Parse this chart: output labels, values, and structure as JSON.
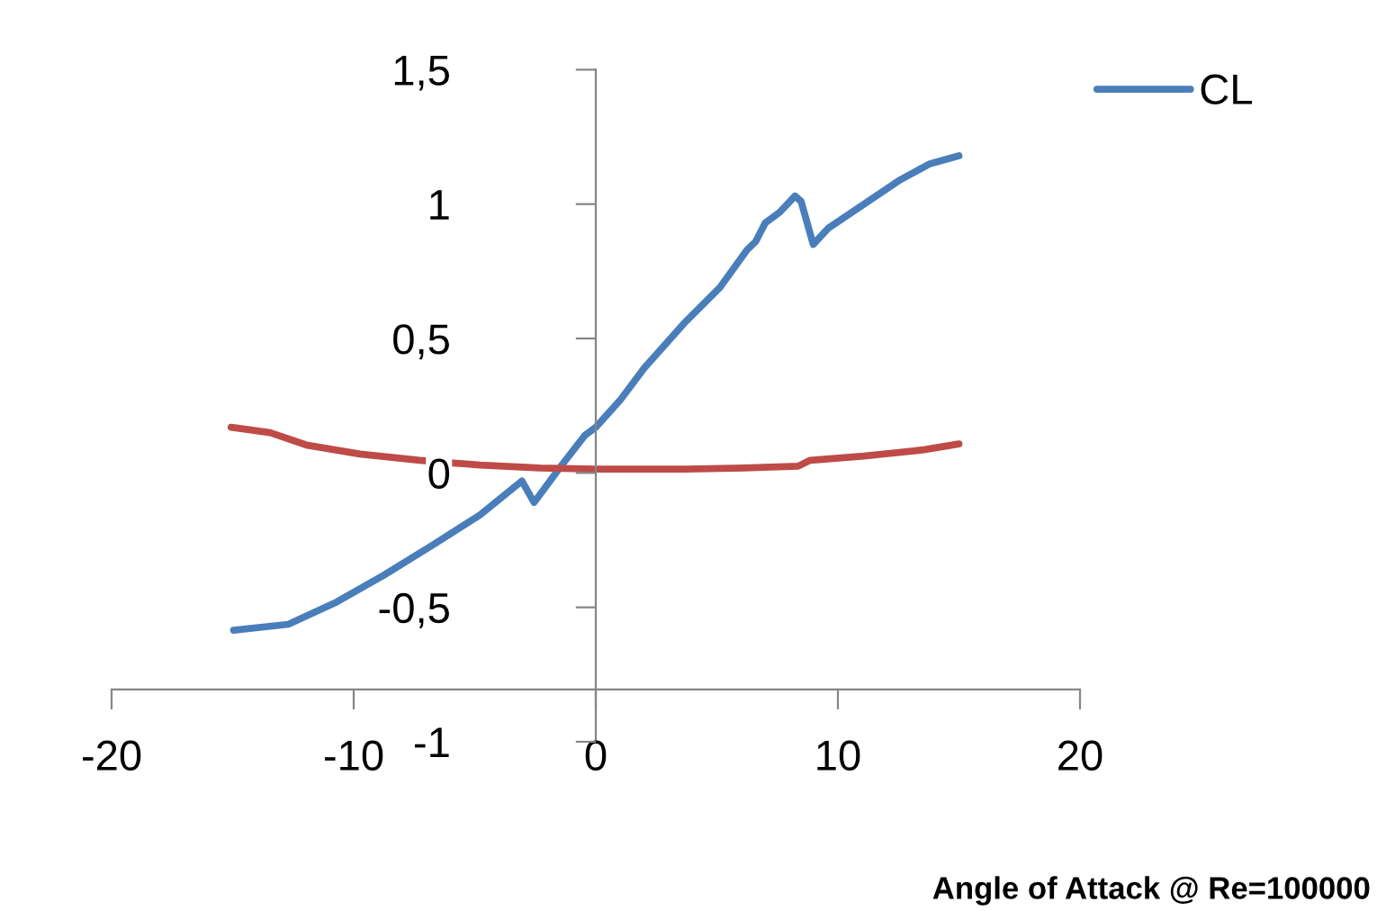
{
  "chart_data": {
    "type": "line",
    "xlabel": "Angle of Attack @ Re=100000",
    "series": [
      {
        "name": "CL",
        "color": "#4a7ebb",
        "x": [
          -14.96,
          -12.7,
          -10.7,
          -8.75,
          -6.77,
          -4.78,
          -3.05,
          -2.55,
          -1.44,
          -0.45,
          0,
          1,
          2,
          3.64,
          5.13,
          6.25,
          6.6,
          7.0,
          7.6,
          8.23,
          8.48,
          8.98,
          9.6,
          11.08,
          12.57,
          13.8,
          15.0
        ],
        "values": [
          -0.585,
          -0.563,
          -0.48,
          -0.38,
          -0.27,
          -0.156,
          -0.03,
          -0.11,
          0.025,
          0.14,
          0.17,
          0.27,
          0.39,
          0.556,
          0.69,
          0.83,
          0.86,
          0.93,
          0.97,
          1.03,
          1.01,
          0.85,
          0.91,
          1.0,
          1.09,
          1.15,
          1.18
        ]
      },
      {
        "color": "#be4b48",
        "x": [
          -15.06,
          -13.45,
          -11.96,
          -9.74,
          -7.26,
          -4.78,
          -2.3,
          0,
          3.64,
          6.1,
          8.36,
          8.85,
          11.08,
          13.55,
          15.0
        ],
        "values": [
          0.17,
          0.15,
          0.104,
          0.07,
          0.047,
          0.029,
          0.018,
          0.014,
          0.014,
          0.018,
          0.025,
          0.047,
          0.063,
          0.086,
          0.108
        ]
      }
    ],
    "xlim": [
      -20,
      20
    ],
    "xticks": [
      -20,
      -10,
      0,
      10,
      20
    ],
    "ylim": [
      -1,
      1.5
    ],
    "yticks": [
      {
        "value": -1,
        "label": "-1"
      },
      {
        "value": -0.5,
        "label": "-0,5"
      },
      0,
      {
        "value": 0.5,
        "label": "0,5"
      },
      1,
      {
        "value": 1.5,
        "label": "1,5"
      }
    ],
    "legend": "top right",
    "marker": "none",
    "line_style": "solid"
  }
}
